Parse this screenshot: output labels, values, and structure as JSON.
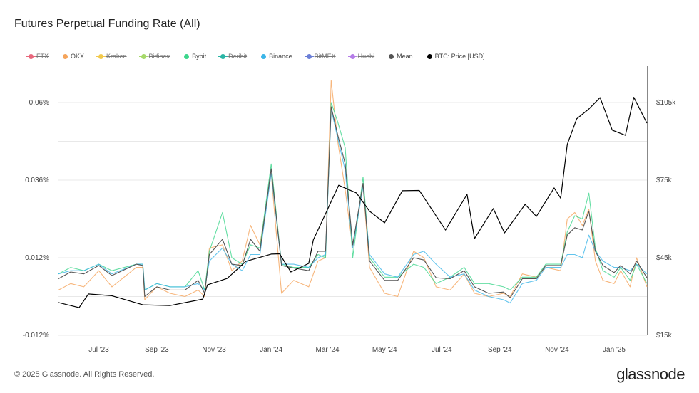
{
  "title": "Futures Perpetual Funding Rate (All)",
  "legend": [
    {
      "label": "FTX",
      "color": "#e8677c",
      "enabled": false
    },
    {
      "label": "OKX",
      "color": "#f5a45b",
      "enabled": true
    },
    {
      "label": "Kraken",
      "color": "#f2c94c",
      "enabled": false
    },
    {
      "label": "Bitfinex",
      "color": "#a6d96a",
      "enabled": false
    },
    {
      "label": "Bybit",
      "color": "#3dd68c",
      "enabled": true
    },
    {
      "label": "Deribit",
      "color": "#2ab5a5",
      "enabled": false
    },
    {
      "label": "Binance",
      "color": "#3bb5e8",
      "enabled": true
    },
    {
      "label": "BitMEX",
      "color": "#6b7fd7",
      "enabled": false
    },
    {
      "label": "Huobi",
      "color": "#b57de8",
      "enabled": false
    },
    {
      "label": "Mean",
      "color": "#555555",
      "enabled": true
    },
    {
      "label": "BTC: Price [USD]",
      "color": "#000000",
      "enabled": true
    }
  ],
  "footer": {
    "copyright": "© 2025 Glassnode. All Rights Reserved.",
    "logo": "glassnode"
  },
  "chart_data": {
    "type": "line",
    "title": "Futures Perpetual Funding Rate (All)",
    "x_range": [
      "2023-05-19",
      "2025-02-05"
    ],
    "x_ticks": [
      {
        "date": "2023-07-01",
        "label": "Jul '23"
      },
      {
        "date": "2023-09-01",
        "label": "Sep '23"
      },
      {
        "date": "2023-11-01",
        "label": "Nov '23"
      },
      {
        "date": "2024-01-01",
        "label": "Jan '24"
      },
      {
        "date": "2024-03-01",
        "label": "Mar '24"
      },
      {
        "date": "2024-05-01",
        "label": "May '24"
      },
      {
        "date": "2024-07-01",
        "label": "Jul '24"
      },
      {
        "date": "2024-09-01",
        "label": "Sep '24"
      },
      {
        "date": "2024-11-01",
        "label": "Nov '24"
      },
      {
        "date": "2025-01-01",
        "label": "Jan '25"
      }
    ],
    "y_left": {
      "unit": "%",
      "range": [
        -0.012,
        0.0697
      ],
      "ticks": [
        {
          "value": 0.06,
          "label": "0.06%"
        },
        {
          "value": 0.036,
          "label": "0.036%"
        },
        {
          "value": 0.012,
          "label": "0.012%"
        },
        {
          "value": -0.012,
          "label": "-0.012%"
        }
      ],
      "gridlines": [
        0.06,
        0.048,
        0.036,
        0.024,
        0.012,
        0,
        -0.012
      ]
    },
    "y_right": {
      "unit": "USD",
      "range": [
        15000,
        117100
      ],
      "ticks": [
        {
          "value": 105000,
          "label": "$105k"
        },
        {
          "value": 75000,
          "label": "$75k"
        },
        {
          "value": 45000,
          "label": "$45k"
        },
        {
          "value": 15000,
          "label": "$15k"
        }
      ]
    },
    "grid": true,
    "legend_position": "top",
    "funding_dates": [
      "2023-05-19",
      "2023-06-01",
      "2023-06-15",
      "2023-07-01",
      "2023-07-15",
      "2023-08-10",
      "2023-08-17",
      "2023-08-19",
      "2023-09-01",
      "2023-09-15",
      "2023-10-01",
      "2023-10-15",
      "2023-10-22",
      "2023-10-27",
      "2023-11-10",
      "2023-11-20",
      "2023-12-01",
      "2023-12-10",
      "2023-12-20",
      "2024-01-01",
      "2024-01-12",
      "2024-01-25",
      "2024-02-10",
      "2024-02-20",
      "2024-02-28",
      "2024-03-05",
      "2024-03-12",
      "2024-03-20",
      "2024-03-28",
      "2024-04-08",
      "2024-04-15",
      "2024-05-01",
      "2024-05-15",
      "2024-06-01",
      "2024-06-12",
      "2024-06-25",
      "2024-07-10",
      "2024-07-25",
      "2024-08-05",
      "2024-08-20",
      "2024-09-05",
      "2024-09-12",
      "2024-09-25",
      "2024-10-10",
      "2024-10-20",
      "2024-11-05",
      "2024-11-12",
      "2024-11-20",
      "2024-11-28",
      "2024-12-05",
      "2024-12-12",
      "2024-12-20",
      "2025-01-01",
      "2025-01-08",
      "2025-01-18",
      "2025-01-25",
      "2025-02-05"
    ],
    "series": [
      {
        "name": "OKX",
        "axis": "left",
        "color": "#f5a45b",
        "values": [
          0.002,
          0.004,
          0.003,
          0.008,
          0.003,
          0.009,
          0.009,
          -0.001,
          0.003,
          0.001,
          0.0,
          0.002,
          0.0,
          0.015,
          0.016,
          0.008,
          0.011,
          0.022,
          0.016,
          0.038,
          0.001,
          0.005,
          0.003,
          0.011,
          0.012,
          0.0668,
          0.048,
          0.033,
          0.015,
          0.034,
          0.009,
          0.001,
          0.0,
          0.014,
          0.012,
          0.003,
          0.002,
          0.007,
          0.001,
          0.0,
          0.001,
          0.0,
          0.007,
          0.006,
          0.009,
          0.008,
          0.024,
          0.026,
          0.022,
          0.027,
          0.011,
          0.005,
          0.004,
          0.008,
          0.003,
          0.012,
          0.003
        ]
      },
      {
        "name": "Bybit",
        "axis": "left",
        "color": "#3dd68c",
        "values": [
          0.007,
          0.009,
          0.008,
          0.01,
          0.008,
          0.01,
          0.01,
          0.002,
          0.004,
          0.003,
          0.003,
          0.008,
          0.002,
          0.014,
          0.026,
          0.012,
          0.01,
          0.016,
          0.015,
          0.041,
          0.01,
          0.009,
          0.009,
          0.013,
          0.012,
          0.06,
          0.054,
          0.046,
          0.012,
          0.037,
          0.012,
          0.006,
          0.006,
          0.01,
          0.009,
          0.004,
          0.006,
          0.009,
          0.004,
          0.004,
          0.003,
          0.002,
          0.006,
          0.006,
          0.01,
          0.01,
          0.02,
          0.025,
          0.024,
          0.032,
          0.015,
          0.008,
          0.006,
          0.009,
          0.005,
          0.01,
          0.004
        ]
      },
      {
        "name": "Binance",
        "axis": "left",
        "color": "#3bb5e8",
        "values": [
          0.007,
          0.008,
          0.008,
          0.01,
          0.007,
          0.01,
          0.01,
          0.002,
          0.004,
          0.003,
          0.003,
          0.004,
          0.002,
          0.011,
          0.015,
          0.01,
          0.008,
          0.013,
          0.013,
          0.038,
          0.01,
          0.01,
          0.009,
          0.012,
          0.013,
          0.058,
          0.049,
          0.039,
          0.015,
          0.034,
          0.013,
          0.007,
          0.006,
          0.013,
          0.014,
          0.01,
          0.006,
          0.007,
          0.002,
          0.0,
          -0.001,
          -0.002,
          0.004,
          0.005,
          0.009,
          0.009,
          0.013,
          0.013,
          0.012,
          0.019,
          0.014,
          0.011,
          0.009,
          0.009,
          0.008,
          0.01,
          0.007
        ]
      },
      {
        "name": "Mean",
        "axis": "left",
        "color": "#555555",
        "values": [
          0.0055,
          0.0076,
          0.007,
          0.0096,
          0.0065,
          0.01,
          0.0096,
          0.0,
          0.003,
          0.002,
          0.002,
          0.005,
          0.001,
          0.013,
          0.0177,
          0.01,
          0.0096,
          0.0177,
          0.014,
          0.0395,
          0.0096,
          0.0088,
          0.008,
          0.014,
          0.014,
          0.0587,
          0.05,
          0.041,
          0.016,
          0.035,
          0.011,
          0.005,
          0.005,
          0.012,
          0.0113,
          0.0058,
          0.0055,
          0.008,
          0.003,
          0.001,
          0.0014,
          -0.0004,
          0.0055,
          0.0055,
          0.0096,
          0.0096,
          0.019,
          0.0213,
          0.0206,
          0.0264,
          0.014,
          0.0096,
          0.0074,
          0.0096,
          0.007,
          0.011,
          0.0058
        ]
      },
      {
        "name": "BTC: Price [USD]",
        "axis": "right",
        "color": "#000000",
        "dates": [
          "2023-05-19",
          "2023-06-10",
          "2023-06-20",
          "2023-07-15",
          "2023-08-17",
          "2023-09-15",
          "2023-10-20",
          "2023-10-25",
          "2023-11-15",
          "2023-12-05",
          "2024-01-01",
          "2024-01-10",
          "2024-01-22",
          "2024-02-10",
          "2024-02-15",
          "2024-02-28",
          "2024-03-13",
          "2024-04-01",
          "2024-04-15",
          "2024-05-01",
          "2024-05-20",
          "2024-06-07",
          "2024-07-05",
          "2024-07-28",
          "2024-08-05",
          "2024-08-25",
          "2024-09-06",
          "2024-09-28",
          "2024-10-10",
          "2024-10-29",
          "2024-11-05",
          "2024-11-12",
          "2024-11-22",
          "2024-12-05",
          "2024-12-17",
          "2024-12-30",
          "2025-01-13",
          "2025-01-22",
          "2025-02-05"
        ],
        "values": [
          27700,
          25700,
          31000,
          30300,
          26800,
          26500,
          29000,
          34500,
          37000,
          43600,
          46400,
          46500,
          39500,
          42800,
          51900,
          62000,
          73000,
          70000,
          63000,
          58500,
          70900,
          71000,
          55700,
          69500,
          52400,
          64000,
          54600,
          65600,
          61000,
          72000,
          68000,
          88800,
          98700,
          102500,
          106900,
          94300,
          92300,
          107000,
          97000
        ]
      }
    ]
  }
}
